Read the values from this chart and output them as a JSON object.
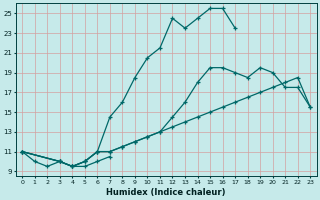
{
  "xlabel": "Humidex (Indice chaleur)",
  "background_color": "#c6eaea",
  "grid_color": "#d4a0a0",
  "line_color": "#006868",
  "xlim": [
    -0.5,
    23.5
  ],
  "ylim": [
    8.5,
    26.0
  ],
  "xticks": [
    0,
    1,
    2,
    3,
    4,
    5,
    6,
    7,
    8,
    9,
    10,
    11,
    12,
    13,
    14,
    15,
    16,
    17,
    18,
    19,
    20,
    21,
    22,
    23
  ],
  "yticks": [
    9,
    11,
    13,
    15,
    17,
    19,
    21,
    23,
    25
  ],
  "peak_x": [
    0,
    3,
    4,
    5,
    6,
    7,
    8,
    9,
    10,
    11,
    12,
    13,
    14,
    15,
    16,
    17
  ],
  "peak_y": [
    11,
    10,
    9.5,
    10,
    11,
    14.5,
    16.0,
    18.5,
    20.5,
    21.5,
    24.5,
    23.5,
    24.5,
    25.5,
    25.5,
    23.5
  ],
  "mid_x": [
    0,
    3,
    4,
    5,
    6,
    7,
    8,
    9,
    10,
    11,
    12,
    13,
    14,
    15,
    16,
    17,
    18,
    19,
    20,
    21,
    22,
    23
  ],
  "mid_y": [
    11,
    10,
    9.5,
    10,
    11,
    11.0,
    11.5,
    12.0,
    12.5,
    13.0,
    14.5,
    16.0,
    18.0,
    19.5,
    19.5,
    19.0,
    18.5,
    19.5,
    19.0,
    17.5,
    17.5,
    15.5
  ],
  "flat_x": [
    0,
    3,
    4,
    5,
    6,
    7,
    8,
    9,
    10,
    11,
    12,
    13,
    14,
    15,
    16,
    17,
    18,
    19,
    20,
    21,
    22,
    23
  ],
  "flat_y": [
    11,
    10,
    9.5,
    10,
    11,
    11.0,
    11.5,
    12.0,
    12.5,
    13.0,
    13.5,
    14.0,
    14.5,
    15.0,
    15.5,
    16.0,
    16.5,
    17.0,
    17.5,
    18.0,
    18.5,
    15.5
  ],
  "zigzag_x": [
    0,
    1,
    2,
    3,
    4,
    5,
    6,
    7
  ],
  "zigzag_y": [
    11,
    10,
    9.5,
    10,
    9.5,
    9.5,
    10,
    10.5
  ]
}
